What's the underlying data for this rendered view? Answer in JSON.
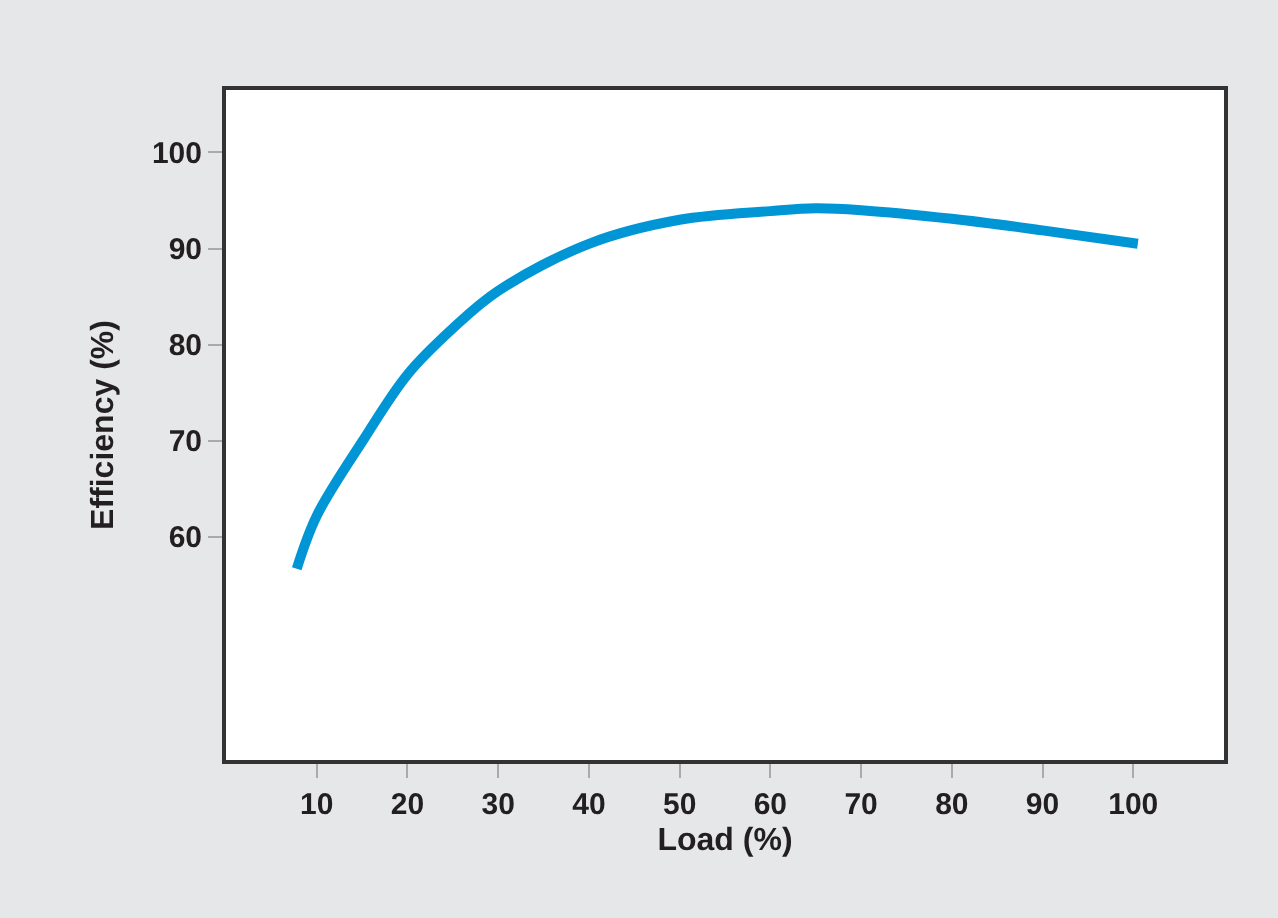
{
  "chart_data": {
    "type": "line",
    "xlabel": "Load (%)",
    "ylabel": "Efficiency (%)",
    "x": [
      7.8,
      10,
      15,
      20,
      25,
      30,
      40,
      50,
      60,
      65,
      70,
      80,
      90,
      100.5
    ],
    "series": [
      {
        "color": "#0096d6",
        "values": [
          56.7,
          62.2,
          69.9,
          76.9,
          81.7,
          85.6,
          90.5,
          93.0,
          93.9,
          94.2,
          94.0,
          93.1,
          91.9,
          90.5
        ]
      }
    ],
    "xlim": [
      0,
      110
    ],
    "ylim": [
      36.8,
      106.5
    ],
    "xticks": [
      10,
      20,
      30,
      40,
      50,
      60,
      70,
      80,
      90,
      100
    ],
    "yticks": [
      60,
      70,
      80,
      90,
      100
    ],
    "marker": "none",
    "line_style": "solid"
  }
}
